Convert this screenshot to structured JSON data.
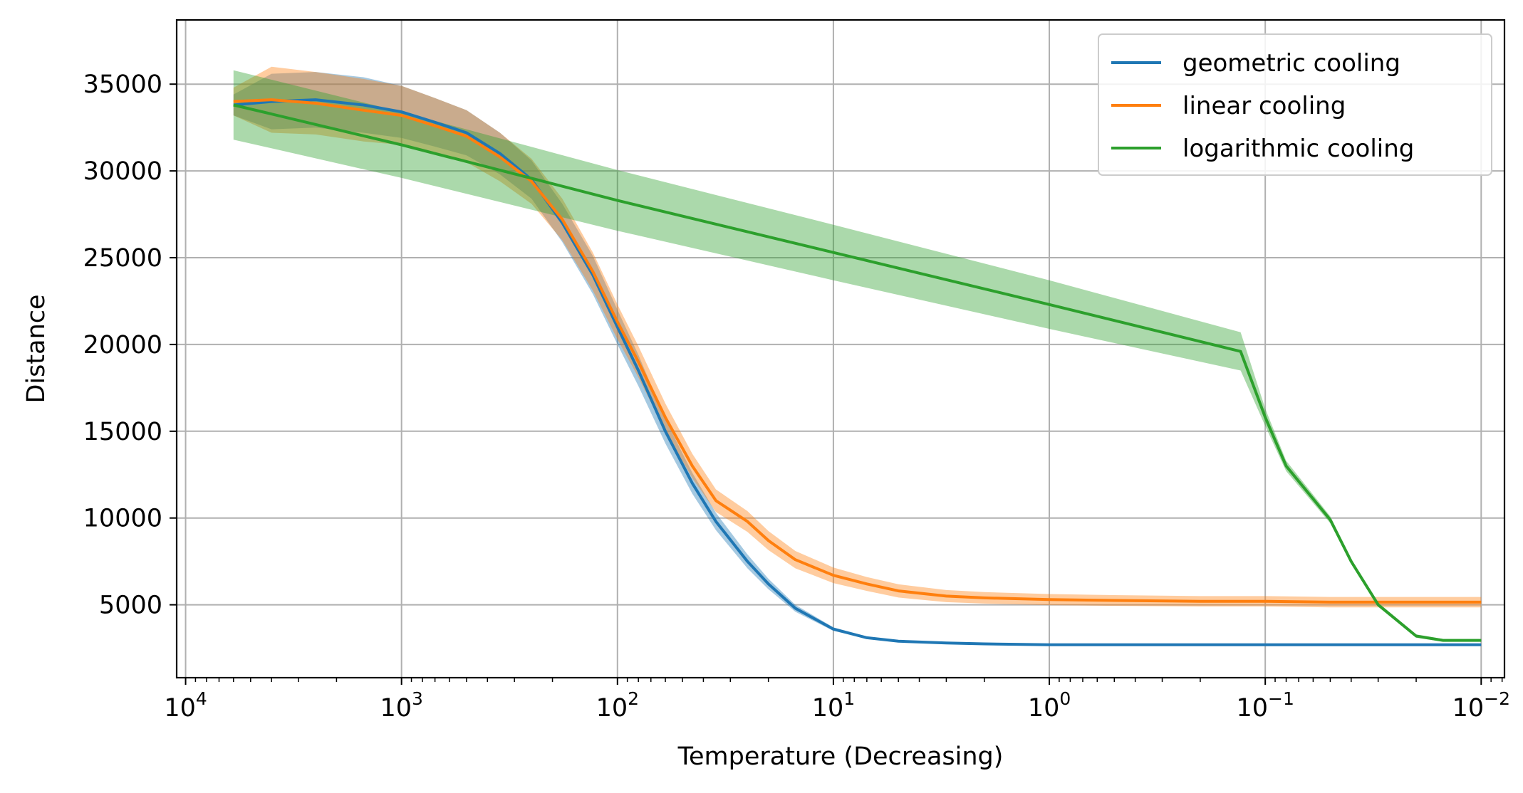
{
  "chart_data": {
    "type": "line",
    "title": "",
    "xlabel": "Temperature (Decreasing)",
    "ylabel": "Distance",
    "x_scale": "log",
    "x_reversed": true,
    "xlim": [
      11000,
      0.0078
    ],
    "ylim": [
      800,
      38700
    ],
    "grid": true,
    "legend_position": "top-right",
    "x_ticks": [
      {
        "value": 10000,
        "base": "10",
        "exp": "4"
      },
      {
        "value": 1000,
        "base": "10",
        "exp": "3"
      },
      {
        "value": 100,
        "base": "10",
        "exp": "2"
      },
      {
        "value": 10,
        "base": "10",
        "exp": "1"
      },
      {
        "value": 1,
        "base": "10",
        "exp": "0"
      },
      {
        "value": 0.1,
        "base": "10",
        "exp": "−1"
      },
      {
        "value": 0.01,
        "base": "10",
        "exp": "−2"
      }
    ],
    "y_ticks": [
      {
        "value": 5000,
        "label": "5000"
      },
      {
        "value": 10000,
        "label": "10000"
      },
      {
        "value": 15000,
        "label": "15000"
      },
      {
        "value": 20000,
        "label": "20000"
      },
      {
        "value": 25000,
        "label": "25000"
      },
      {
        "value": 30000,
        "label": "30000"
      },
      {
        "value": 35000,
        "label": "35000"
      }
    ],
    "series": [
      {
        "name": "geometric cooling",
        "color": "#1f77b4",
        "x": [
          6000,
          4000,
          2500,
          1500,
          1000,
          700,
          500,
          350,
          250,
          180,
          130,
          100,
          80,
          60,
          45,
          35,
          25,
          20,
          15,
          10,
          7,
          5,
          3,
          2,
          1,
          0.5,
          0.2,
          0.1,
          0.05,
          0.02,
          0.01
        ],
        "y": [
          33800,
          34000,
          34100,
          33800,
          33400,
          32800,
          32200,
          31000,
          29500,
          27000,
          24000,
          21000,
          18500,
          15000,
          12000,
          9800,
          7500,
          6200,
          4800,
          3600,
          3100,
          2900,
          2800,
          2750,
          2700,
          2700,
          2700,
          2700,
          2700,
          2700,
          2700
        ],
        "band": [
          600,
          1600,
          1600,
          1600,
          1500,
          1400,
          1300,
          1200,
          1100,
          1100,
          1100,
          1000,
          900,
          700,
          600,
          500,
          400,
          300,
          200,
          100,
          60,
          40,
          30,
          20,
          20,
          20,
          20,
          20,
          20,
          20,
          20
        ]
      },
      {
        "name": "linear cooling",
        "color": "#ff7f0e",
        "x": [
          6000,
          4000,
          2500,
          1500,
          1000,
          700,
          500,
          350,
          250,
          180,
          130,
          100,
          80,
          60,
          45,
          35,
          25,
          20,
          15,
          10,
          7,
          5,
          3,
          2,
          1,
          0.5,
          0.2,
          0.1,
          0.05,
          0.02,
          0.01
        ],
        "y": [
          34000,
          34100,
          33900,
          33500,
          33200,
          32600,
          32000,
          30800,
          29400,
          27200,
          24200,
          21300,
          19000,
          15800,
          13000,
          11000,
          9800,
          8700,
          7600,
          6700,
          6200,
          5800,
          5500,
          5400,
          5300,
          5250,
          5200,
          5200,
          5150,
          5150,
          5150
        ],
        "band": [
          800,
          1900,
          1800,
          1800,
          1700,
          1600,
          1500,
          1400,
          1300,
          1200,
          1100,
          1000,
          900,
          800,
          700,
          650,
          600,
          550,
          500,
          450,
          400,
          380,
          350,
          330,
          320,
          310,
          300,
          300,
          300,
          300,
          300
        ]
      },
      {
        "name": "logarithmic cooling",
        "color": "#2ca02c",
        "x": [
          6000,
          1000,
          100,
          10,
          1,
          0.13,
          0.1,
          0.08,
          0.05,
          0.04,
          0.03,
          0.02,
          0.015,
          0.01
        ],
        "y": [
          33800,
          31500,
          28300,
          25300,
          22300,
          19600,
          15800,
          13000,
          9900,
          7500,
          5000,
          3200,
          2950,
          2950
        ],
        "band": [
          2000,
          1900,
          1750,
          1600,
          1400,
          1100,
          500,
          300,
          200,
          150,
          120,
          100,
          80,
          80
        ]
      }
    ]
  }
}
